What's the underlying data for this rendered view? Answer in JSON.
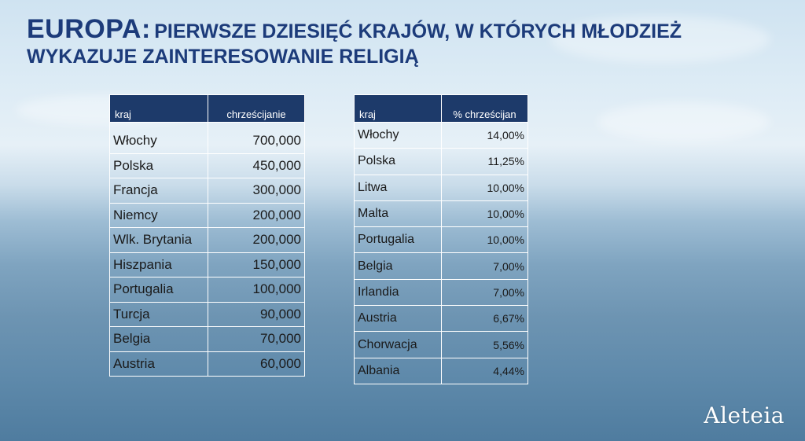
{
  "title": {
    "part1": "EUROPA:",
    "part2": "PIERWSZE DZIESIĘĆ KRAJÓW, W KTÓRYCH MŁODZIEŻ",
    "line2": "WYKAZUJE ZAINTERESOWANIE RELIGIĄ"
  },
  "logo": "Aleteia",
  "chart_data": [
    {
      "type": "table",
      "columns": [
        "kraj",
        "chrześcijanie"
      ],
      "rows": [
        [
          "Włochy",
          "700,000"
        ],
        [
          "Polska",
          "450,000"
        ],
        [
          "Francja",
          "300,000"
        ],
        [
          "Niemcy",
          "200,000"
        ],
        [
          "Wlk. Brytania",
          "200,000"
        ],
        [
          "Hiszpania",
          "150,000"
        ],
        [
          "Portugalia",
          "100,000"
        ],
        [
          "Turcja",
          "90,000"
        ],
        [
          "Belgia",
          "70,000"
        ],
        [
          "Austria",
          "60,000"
        ]
      ]
    },
    {
      "type": "table",
      "columns": [
        "kraj",
        "% chrześcijan"
      ],
      "rows": [
        [
          "Włochy",
          "14,00%"
        ],
        [
          "Polska",
          "11,25%"
        ],
        [
          "Litwa",
          "10,00%"
        ],
        [
          "Malta",
          "10,00%"
        ],
        [
          "Portugalia",
          "10,00%"
        ],
        [
          "Belgia",
          "7,00%"
        ],
        [
          "Irlandia",
          "7,00%"
        ],
        [
          "Austria",
          "6,67%"
        ],
        [
          "Chorwacja",
          "5,56%"
        ],
        [
          "Albania",
          "4,44%"
        ]
      ]
    }
  ]
}
